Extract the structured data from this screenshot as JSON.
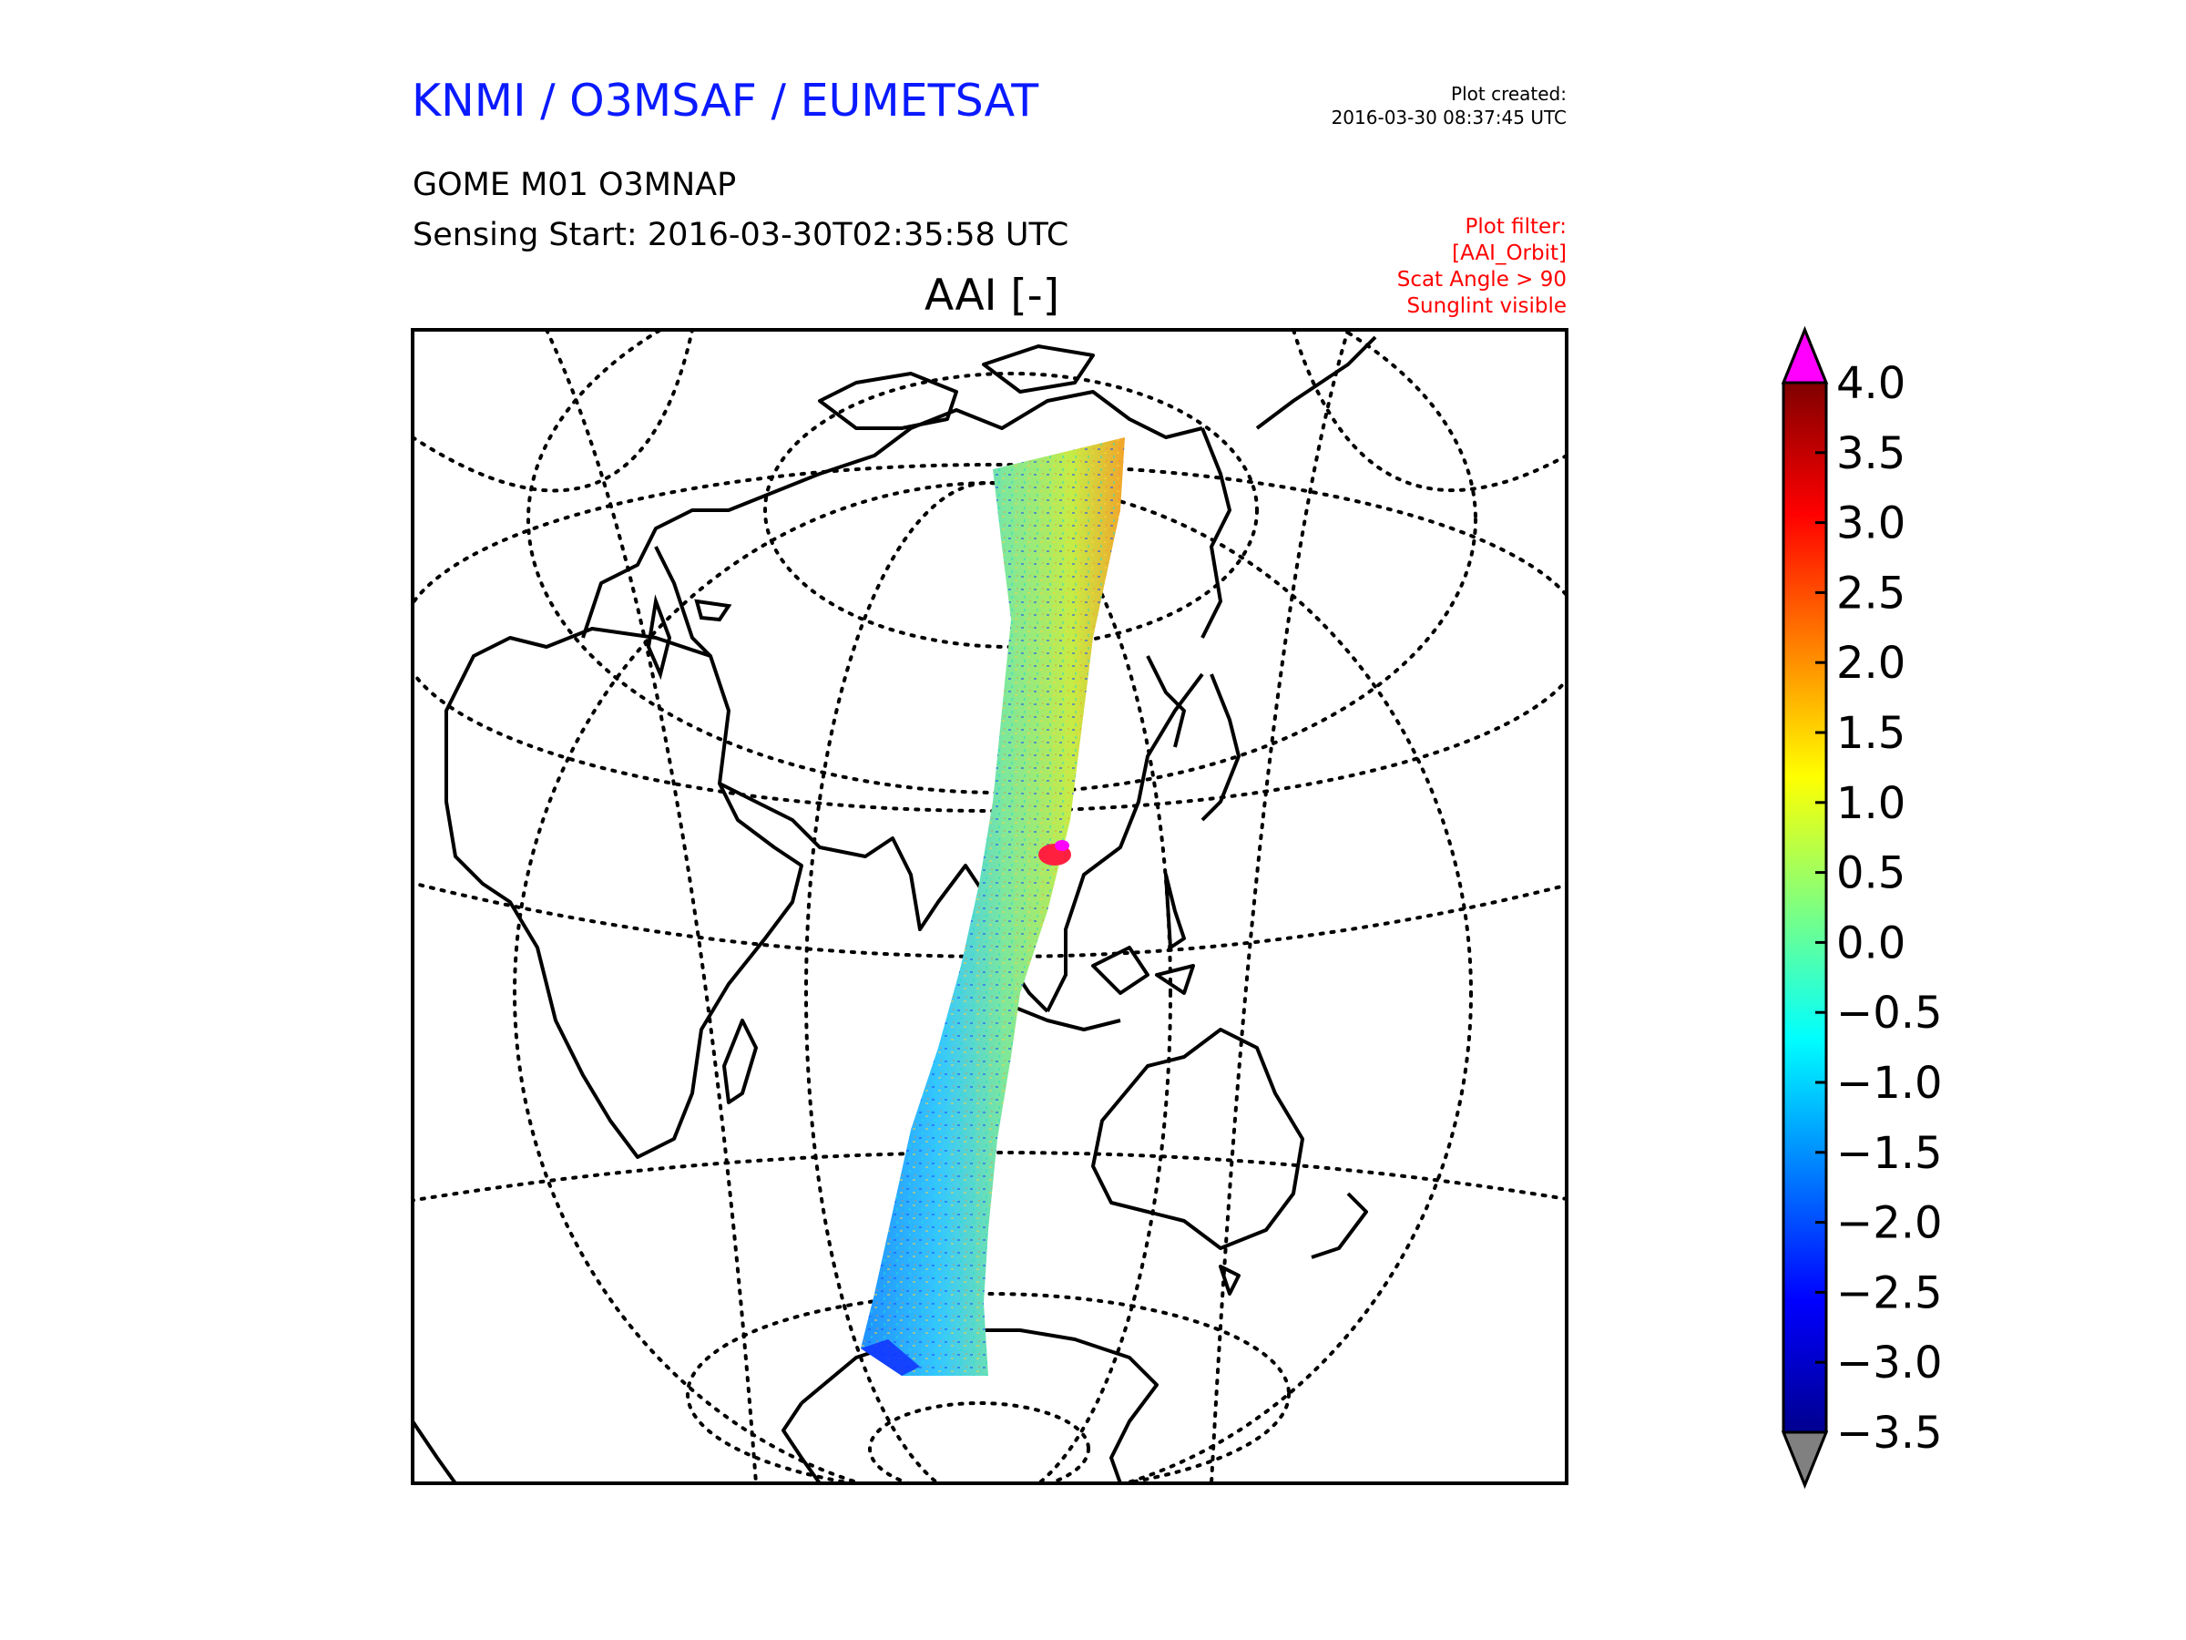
{
  "header": {
    "org": "KNMI / O3MSAF / EUMETSAT",
    "product": "GOME M01 O3MNAP",
    "sensing": "Sensing Start: 2016-03-30T02:35:58 UTC",
    "created_label": "Plot created:",
    "created_value": "2016-03-30 08:37:45 UTC"
  },
  "filter": {
    "lines": [
      "Plot filter:",
      "[AAI_Orbit]",
      "Scat Angle > 90",
      "Sunglint visible"
    ],
    "color": "#ff0000"
  },
  "map": {
    "title": "AAI [-]",
    "projection": "orthographic-style globe view centered on Asia / Indian Ocean",
    "grid": "dotted lat/lon lines",
    "swath": "single GOME-2 orbit swath from Arctic to Antarctica over East Asia / Indian Ocean"
  },
  "colorbar": {
    "ticks": [
      "4.0",
      "3.5",
      "3.0",
      "2.5",
      "2.0",
      "1.5",
      "1.0",
      "0.5",
      "0.0",
      "−0.5",
      "−1.0",
      "−1.5",
      "−2.0",
      "−2.5",
      "−3.0",
      "−3.5"
    ],
    "min": -3.5,
    "max": 4.0,
    "over_color": "#ff00ff",
    "under_color": "#808080"
  },
  "colors": {
    "org": "#0a1aff",
    "filter": "#ff0000"
  }
}
